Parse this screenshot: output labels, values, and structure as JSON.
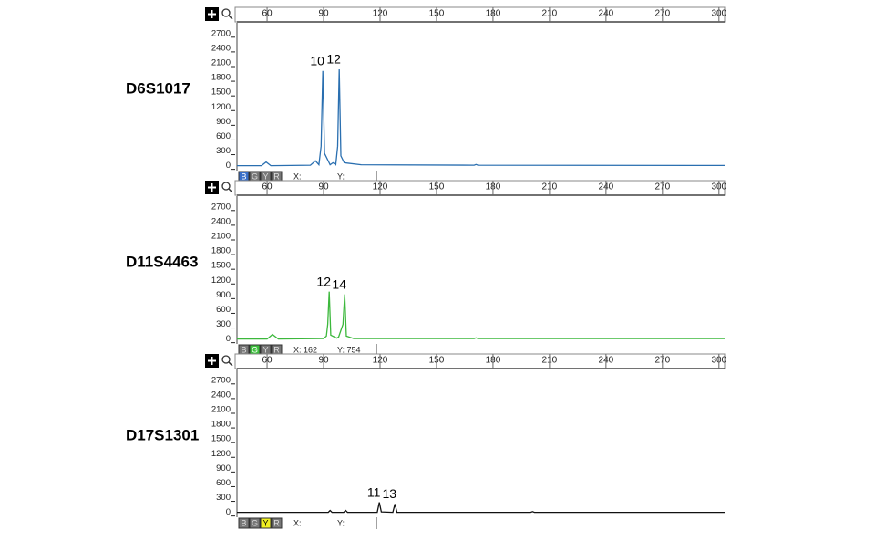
{
  "chart_data": [
    {
      "type": "line",
      "title": "D6S1017",
      "x": [
        44,
        57,
        59.5,
        62,
        83,
        85.7,
        87.5,
        88.7,
        89.6,
        90.5,
        93.5,
        95,
        96.5,
        97.5,
        98.3,
        99.2,
        101,
        110,
        170,
        171,
        172,
        303
      ],
      "series": [
        {
          "color": "#2a6fb0",
          "values": [
            0,
            0,
            75,
            0,
            10,
            100,
            20,
            400,
            1936,
            250,
            20,
            60,
            20,
            400,
            1970,
            200,
            60,
            20,
            10,
            25,
            10,
            5
          ]
        }
      ],
      "annotations": [
        {
          "text": "10",
          "x": 89.6
        },
        {
          "text": "12",
          "x": 98.3
        }
      ],
      "xlim": [
        44,
        303
      ],
      "xticks": [
        60,
        90,
        120,
        150,
        180,
        210,
        240,
        270,
        300
      ],
      "ylim": [
        -100,
        2920
      ],
      "yticks": [
        0,
        300,
        600,
        900,
        1200,
        1500,
        1800,
        2100,
        2400,
        2700
      ],
      "buttons": [
        "B",
        "G",
        "Y",
        "R"
      ],
      "active_button": 0,
      "active_color": "#3a6fc8",
      "cursor": [
        "X:",
        "Y:"
      ]
    },
    {
      "type": "line",
      "title": "D11S4463",
      "x": [
        44,
        60,
        62.9,
        66,
        90,
        91.5,
        92.2,
        93,
        93.8,
        97,
        98,
        100.3,
        101.2,
        102.1,
        106,
        150,
        170,
        171,
        172,
        250,
        303
      ],
      "series": [
        {
          "color": "#3cb83c",
          "values": [
            0,
            0,
            93,
            0,
            10,
            60,
            300,
            968,
            80,
            20,
            40,
            300,
            912,
            60,
            10,
            10,
            10,
            25,
            10,
            10,
            10
          ]
        }
      ],
      "annotations": [
        {
          "text": "12",
          "x": 93
        },
        {
          "text": "14",
          "x": 101.2
        }
      ],
      "xlim": [
        44,
        303
      ],
      "xticks": [
        60,
        90,
        120,
        150,
        180,
        210,
        240,
        270,
        300
      ],
      "ylim": [
        -100,
        2920
      ],
      "yticks": [
        0,
        300,
        600,
        900,
        1200,
        1500,
        1800,
        2100,
        2400,
        2700
      ],
      "buttons": [
        "B",
        "G",
        "Y",
        "R"
      ],
      "active_button": 1,
      "active_color": "#3cc03c",
      "cursor": [
        "X: 162",
        "Y: 754"
      ]
    },
    {
      "type": "line",
      "title": "D17S1301",
      "x": [
        44,
        92.5,
        93.5,
        94.5,
        100.7,
        101.7,
        102.7,
        118.5,
        119.6,
        120.7,
        126.8,
        127.9,
        129,
        200,
        201,
        202,
        303
      ],
      "series": [
        {
          "color": "#111111",
          "values": [
            0,
            0,
            40,
            0,
            0,
            40,
            0,
            0,
            205,
            10,
            0,
            170,
            0,
            0,
            15,
            0,
            0
          ]
        }
      ],
      "annotations": [
        {
          "text": "11",
          "x": 119.6
        },
        {
          "text": "13",
          "x": 127.9
        }
      ],
      "xlim": [
        44,
        303
      ],
      "xticks": [
        60,
        90,
        120,
        150,
        180,
        210,
        240,
        270,
        300
      ],
      "ylim": [
        -100,
        2920
      ],
      "yticks": [
        0,
        300,
        600,
        900,
        1200,
        1500,
        1800,
        2100,
        2400,
        2700
      ],
      "buttons": [
        "B",
        "G",
        "Y",
        "R"
      ],
      "active_button": 2,
      "active_color": "#f0f020",
      "cursor": [
        "X:",
        "Y:"
      ]
    }
  ]
}
